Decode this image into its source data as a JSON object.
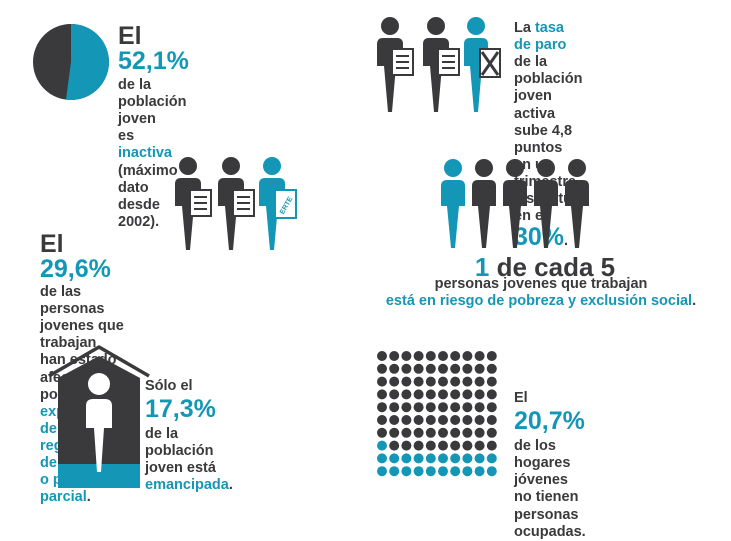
{
  "colors": {
    "dark": "#3a3a3c",
    "accent": "#1497b6"
  },
  "panel_inactive": {
    "lead": "El ",
    "value": "52,1%",
    "line2": "de la población joven",
    "line3a": "es ",
    "line3b": "inactiva",
    "line4": "(máximo dato desde 2002).",
    "inactive_share": 52.1
  },
  "panel_unemployment": {
    "l1a": "La ",
    "l1b": "tasa de paro",
    "l2": "de la población joven activa",
    "l3": "sube 4,8 puntos",
    "l4": "en un trimestre",
    "l5": "y se sitúa en el ",
    "value": "30%",
    "l5end": "."
  },
  "panel_erte": {
    "lead": "El ",
    "value": "29,6%",
    "l2": "de las personas jovenes que trabajan",
    "l3a": "han estado afectadas por ",
    "l3b": "expedientes",
    "l4a": "de regulación de empleo o paro parcial",
    "l4b": ".",
    "badge": "ERTE"
  },
  "panel_poverty": {
    "num": "1",
    "rest": " de cada 5",
    "l2": "personas jovenes que trabajan",
    "l3a": "está en riesgo de pobreza y exclusión social",
    "l3b": "."
  },
  "panel_emancipation": {
    "l1": "Sólo el",
    "value": "17,3%",
    "l3": "de la población",
    "l4": "joven está",
    "l5a": "emancipada",
    "l5b": ".",
    "share": 17.3
  },
  "panel_households": {
    "l1": "El",
    "value": "20,7%",
    "l3": "de los hogares",
    "l4": "jóvenes no tienen",
    "l5": "personas ocupadas.",
    "share": 20.7
  }
}
